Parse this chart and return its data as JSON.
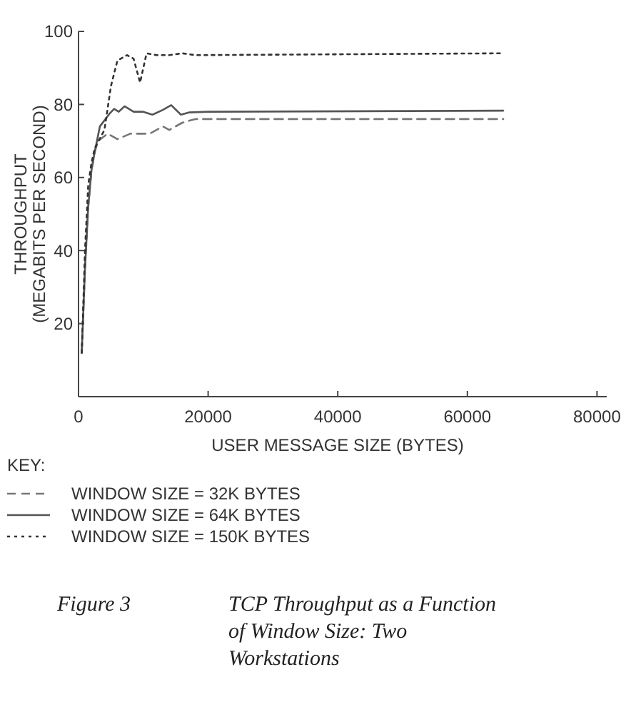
{
  "chart_data": {
    "type": "line",
    "xlabel": "USER MESSAGE SIZE (BYTES)",
    "ylabel": "THROUGHPUT\n(MEGABITS PER SECOND)",
    "legend_title": "KEY:",
    "legend": "bottom",
    "xlim": [
      0,
      81500
    ],
    "xticks": [
      0,
      20000,
      40000,
      60000,
      80000
    ],
    "ylim": [
      0,
      100
    ],
    "yticks": [
      20,
      40,
      60,
      80,
      100
    ],
    "grid": false,
    "marker": "none",
    "annotations": [
      "Figure 3",
      "TCP Throughput as a Function of Window Size: Two Workstations"
    ],
    "series": [
      {
        "name": "WINDOW SIZE = 32K BYTES",
        "color": "#777777",
        "line_style": "dashed",
        "x": [
          500,
          1000,
          1500,
          2000,
          2500,
          3000,
          4500,
          5500,
          6000,
          8000,
          10000,
          11000,
          13000,
          14000,
          16000,
          18000,
          65536
        ],
        "values": [
          12,
          35,
          52,
          62,
          67,
          70,
          72,
          71,
          70.5,
          72,
          72,
          72,
          74,
          73,
          75,
          76,
          76
        ]
      },
      {
        "name": "WINDOW SIZE = 64K BYTES",
        "color": "#555555",
        "line_style": "solid",
        "x": [
          500,
          1000,
          1500,
          2000,
          2500,
          3300,
          4800,
          5500,
          6200,
          7100,
          8500,
          10000,
          11400,
          13000,
          14300,
          15800,
          17000,
          20000,
          65536
        ],
        "values": [
          12,
          35,
          52,
          62,
          67,
          74,
          77.5,
          78.8,
          78,
          79.5,
          78,
          78,
          77.2,
          78.5,
          79.8,
          77.2,
          77.8,
          78,
          78.3
        ]
      },
      {
        "name": "WINDOW SIZE = 150K BYTES",
        "color": "#333333",
        "line_style": "dotted",
        "x": [
          500,
          1000,
          1500,
          2000,
          2500,
          4000,
          5000,
          6000,
          7500,
          8500,
          9500,
          10500,
          12000,
          14000,
          16000,
          18000,
          65536
        ],
        "values": [
          12,
          40,
          58,
          64,
          68,
          73,
          85,
          92,
          93.5,
          92.5,
          86,
          94,
          93.5,
          93.5,
          94,
          93.5,
          94
        ]
      }
    ]
  }
}
